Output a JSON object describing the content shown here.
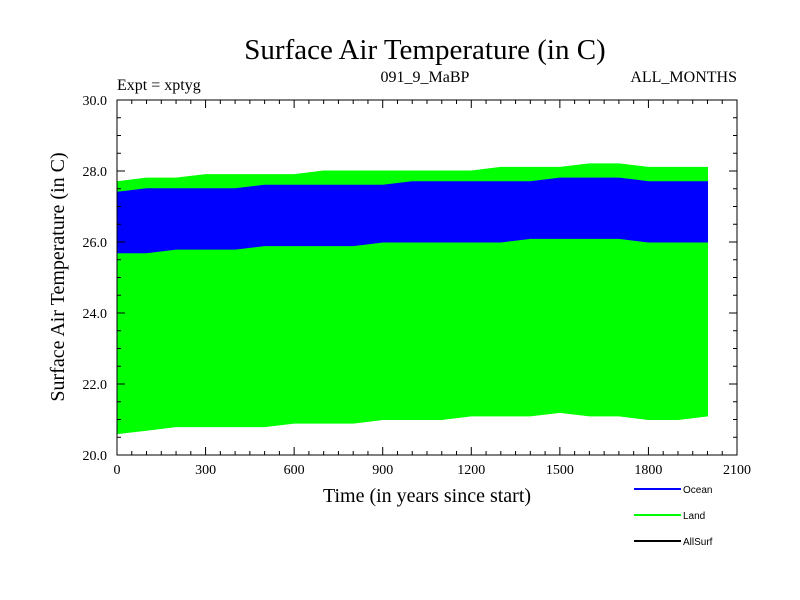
{
  "chart_data": {
    "type": "line",
    "title": "Surface Air Temperature (in C)",
    "left_label": "Expt = xptyg",
    "center_label": "091_9_MaBP",
    "right_label": "ALL_MONTHS",
    "xlabel": "Time (in years since start)",
    "ylabel": "Surface Air Temperature (in C)",
    "xlim": [
      0,
      2100
    ],
    "ylim": [
      20.0,
      30.0
    ],
    "x_ticks": [
      0,
      300,
      600,
      900,
      1200,
      1500,
      1800,
      2100
    ],
    "x_tick_labels": [
      "0",
      "300",
      "600",
      "900",
      "1200",
      "1500",
      "1800",
      "2100"
    ],
    "y_ticks": [
      20.0,
      22.0,
      24.0,
      26.0,
      28.0,
      30.0
    ],
    "y_tick_labels": [
      "20.0",
      "22.0",
      "24.0",
      "26.0",
      "28.0",
      "30.0"
    ],
    "legend_position": "bottom-right, outside plot",
    "series": [
      {
        "name": "Land",
        "color": "#00ff00",
        "x": [
          0,
          100,
          200,
          300,
          400,
          500,
          600,
          700,
          800,
          900,
          1000,
          1100,
          1200,
          1300,
          1400,
          1500,
          1600,
          1700,
          1800,
          1900,
          2000
        ],
        "upper": [
          27.7,
          27.8,
          27.8,
          27.9,
          27.9,
          27.9,
          27.9,
          28.0,
          28.0,
          28.0,
          28.0,
          28.0,
          28.0,
          28.1,
          28.1,
          28.1,
          28.2,
          28.2,
          28.1,
          28.1,
          28.1
        ],
        "lower": [
          20.6,
          20.7,
          20.8,
          20.8,
          20.8,
          20.8,
          20.9,
          20.9,
          20.9,
          21.0,
          21.0,
          21.0,
          21.1,
          21.1,
          21.1,
          21.2,
          21.1,
          21.1,
          21.0,
          21.0,
          21.1
        ]
      },
      {
        "name": "Ocean",
        "color": "#0000ff",
        "x": [
          0,
          100,
          200,
          300,
          400,
          500,
          600,
          700,
          800,
          900,
          1000,
          1100,
          1200,
          1300,
          1400,
          1500,
          1600,
          1700,
          1800,
          1900,
          2000
        ],
        "upper": [
          27.4,
          27.5,
          27.5,
          27.5,
          27.5,
          27.6,
          27.6,
          27.6,
          27.6,
          27.6,
          27.7,
          27.7,
          27.7,
          27.7,
          27.7,
          27.8,
          27.8,
          27.8,
          27.7,
          27.7,
          27.7
        ],
        "lower": [
          25.7,
          25.7,
          25.8,
          25.8,
          25.8,
          25.9,
          25.9,
          25.9,
          25.9,
          26.0,
          26.0,
          26.0,
          26.0,
          26.0,
          26.1,
          26.1,
          26.1,
          26.1,
          26.0,
          26.0,
          26.0
        ]
      },
      {
        "name": "AllSurf",
        "color": "#000000",
        "x": [],
        "upper": [],
        "lower": []
      }
    ]
  }
}
